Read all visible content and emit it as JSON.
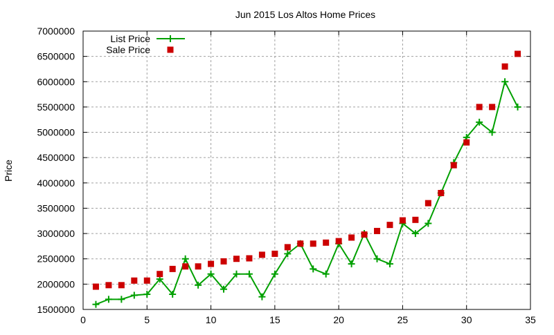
{
  "chart_data": {
    "type": "line",
    "title": "Jun 2015 Los Altos Home Prices",
    "xlabel": "",
    "ylabel": "Price",
    "xlim": [
      0,
      35
    ],
    "ylim": [
      1500000,
      7000000
    ],
    "xticks": [
      0,
      5,
      10,
      15,
      20,
      25,
      30,
      35
    ],
    "yticks": [
      1500000,
      2000000,
      2500000,
      3000000,
      3500000,
      4000000,
      4500000,
      5000000,
      5500000,
      6000000,
      6500000,
      7000000
    ],
    "grid": true,
    "legend_position": "top-left",
    "x": [
      1,
      2,
      3,
      4,
      5,
      6,
      7,
      8,
      9,
      10,
      11,
      12,
      13,
      14,
      15,
      16,
      17,
      18,
      19,
      20,
      21,
      22,
      23,
      24,
      25,
      26,
      27,
      28,
      29,
      30,
      31,
      32,
      33,
      34
    ],
    "series": [
      {
        "name": "List Price",
        "style": "linespoints",
        "color": "#00a000",
        "values": [
          1600000,
          1700000,
          1700000,
          1780000,
          1800000,
          2100000,
          1800000,
          2500000,
          1980000,
          2200000,
          1900000,
          2200000,
          2200000,
          1750000,
          2200000,
          2600000,
          2800000,
          2300000,
          2200000,
          2800000,
          2400000,
          3000000,
          2500000,
          2400000,
          3200000,
          3000000,
          3200000,
          3800000,
          4400000,
          4900000,
          5200000,
          5000000,
          6000000,
          5500000
        ]
      },
      {
        "name": "Sale Price",
        "style": "points",
        "color": "#cc0000",
        "values": [
          1950000,
          1980000,
          1980000,
          2070000,
          2070000,
          2200000,
          2300000,
          2350000,
          2350000,
          2400000,
          2450000,
          2500000,
          2510000,
          2580000,
          2600000,
          2730000,
          2800000,
          2800000,
          2820000,
          2850000,
          2920000,
          2980000,
          3050000,
          3170000,
          3260000,
          3270000,
          3600000,
          3800000,
          4350000,
          4800000,
          5500000,
          5500000,
          6300000,
          6550000
        ]
      }
    ]
  }
}
